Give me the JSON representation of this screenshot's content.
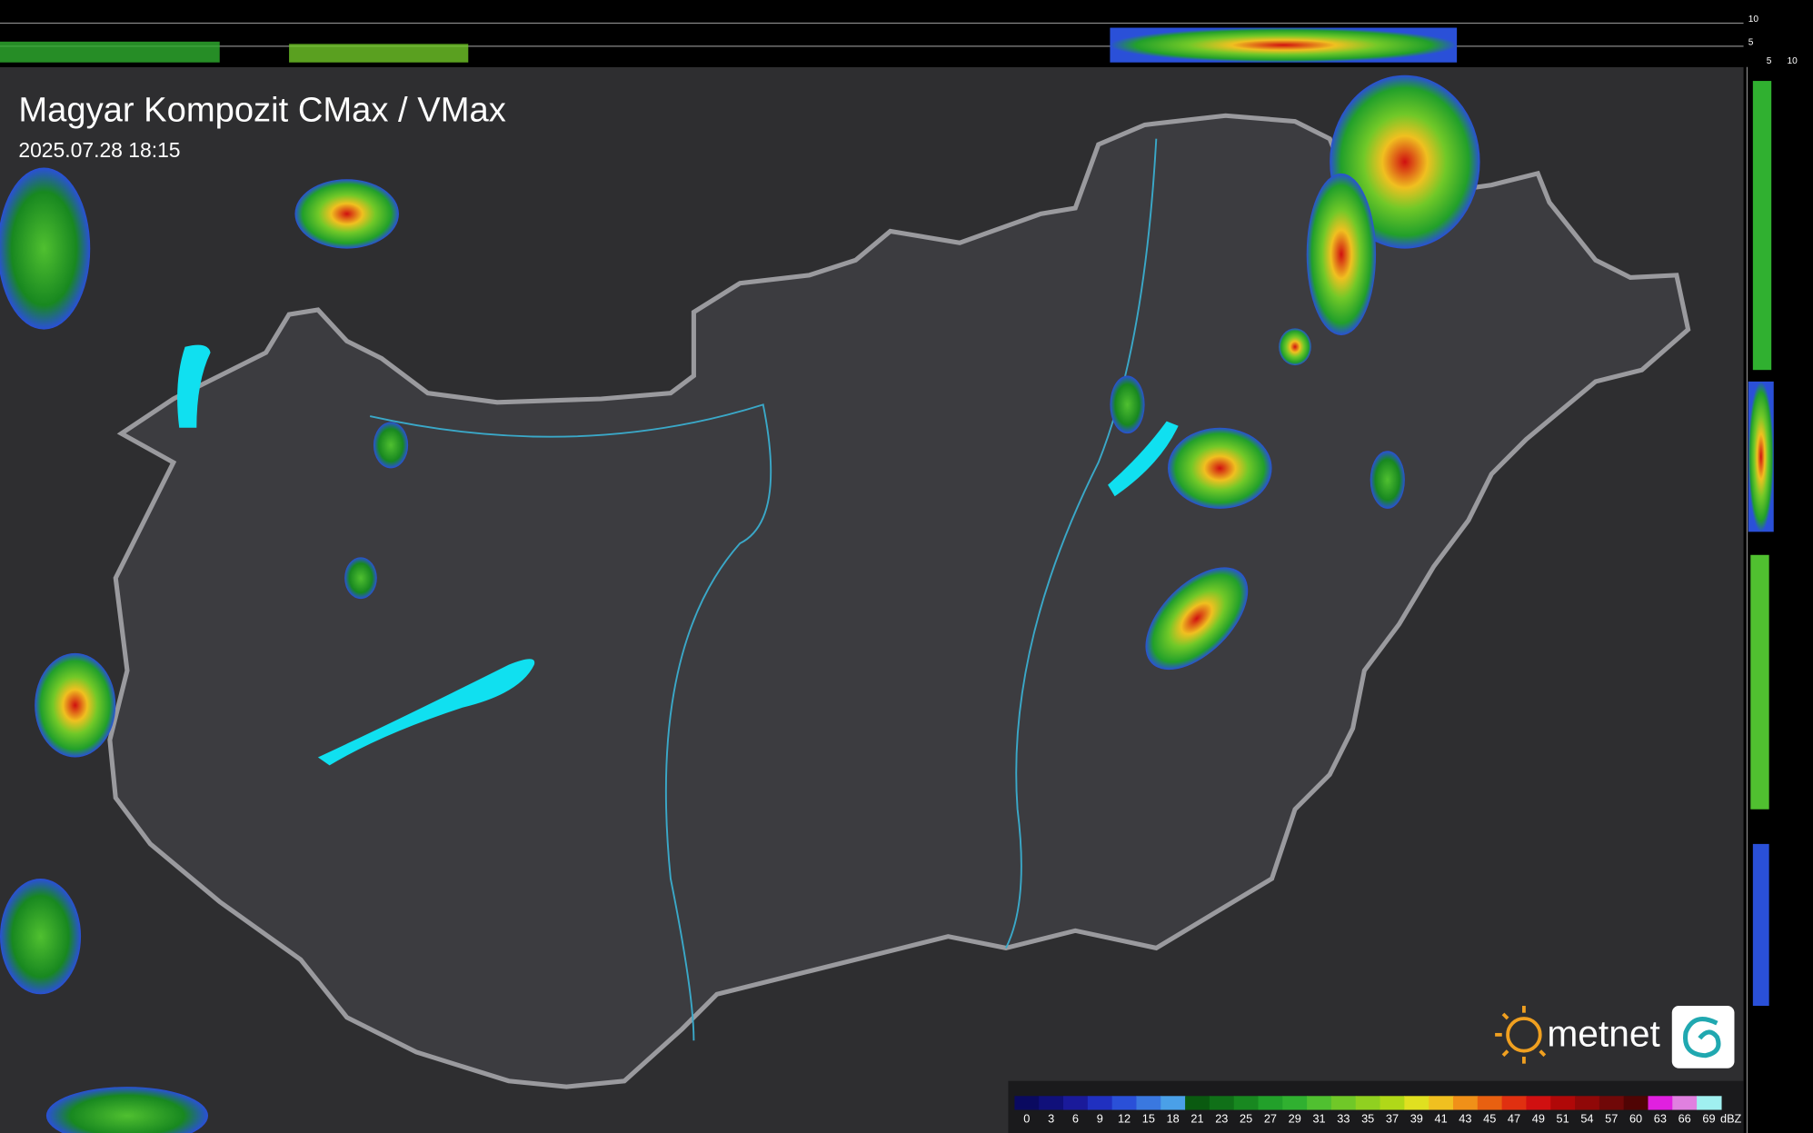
{
  "header": {
    "title": "Magyar Kompozit CMax / VMax",
    "timestamp": "2025.07.28 18:15"
  },
  "side_profile": {
    "top_labels": [
      10,
      5
    ],
    "bottom_labels": [
      5,
      10
    ]
  },
  "logo": {
    "text": "metnet"
  },
  "legend": {
    "unit": "dBZ",
    "ticks": [
      0,
      3,
      6,
      9,
      12,
      15,
      18,
      21,
      23,
      25,
      27,
      29,
      31,
      33,
      35,
      37,
      39,
      41,
      43,
      45,
      47,
      49,
      51,
      54,
      57,
      60,
      63,
      66,
      69
    ],
    "colors": [
      "#0a0a60",
      "#10107a",
      "#1a1a9a",
      "#2030c0",
      "#2a50d8",
      "#3a78e0",
      "#4aa0e8",
      "#0a5a10",
      "#107018",
      "#188820",
      "#22a02a",
      "#30b030",
      "#50c030",
      "#70c828",
      "#90d020",
      "#b0d818",
      "#e0e020",
      "#f0c020",
      "#f09018",
      "#e86010",
      "#e03010",
      "#d01010",
      "#b00808",
      "#900808",
      "#700808",
      "#500404",
      "#e020e0",
      "#e080e0",
      "#a0f0f0"
    ]
  }
}
